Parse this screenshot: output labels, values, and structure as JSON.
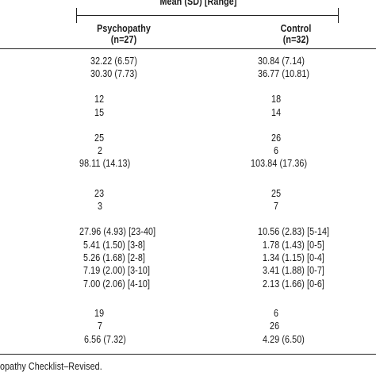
{
  "table": {
    "spanner_label": "Mean (SD) [Range]",
    "columns": [
      {
        "name": "Psychopathy",
        "n": "(n=27)"
      },
      {
        "name": "Control",
        "n": "(n=32)"
      }
    ],
    "rows": [
      [
        "32.22 (6.57)",
        "30.84 (7.14)"
      ],
      [
        "30.30 (7.73)",
        "36.77 (10.81)"
      ],
      [
        "12",
        "18"
      ],
      [
        "15",
        "14"
      ],
      [
        "25",
        "26"
      ],
      [
        "2",
        "6"
      ],
      [
        "98.11 (14.13)",
        "103.84 (17.36)"
      ],
      [
        "23",
        "25"
      ],
      [
        "3",
        "7"
      ],
      [
        "27.96 (4.93) [23-40]",
        "10.56 (2.83) [5-14]"
      ],
      [
        "5.41 (1.50) [3-8]",
        "1.78 (1.43) [0-5]"
      ],
      [
        "5.26 (1.68) [2-8]",
        "1.34 (1.15) [0-4]"
      ],
      [
        "7.19 (2.00) [3-10]",
        "3.41 (1.88) [0-7]"
      ],
      [
        "7.00 (2.06) [4-10]",
        "2.13 (1.66) [0-6]"
      ],
      [
        "19",
        "6"
      ],
      [
        "7",
        "26"
      ],
      [
        "6.56 (7.32)",
        "4.29 (6.50)"
      ]
    ]
  },
  "footnote": "opathy Checklist–Revised."
}
